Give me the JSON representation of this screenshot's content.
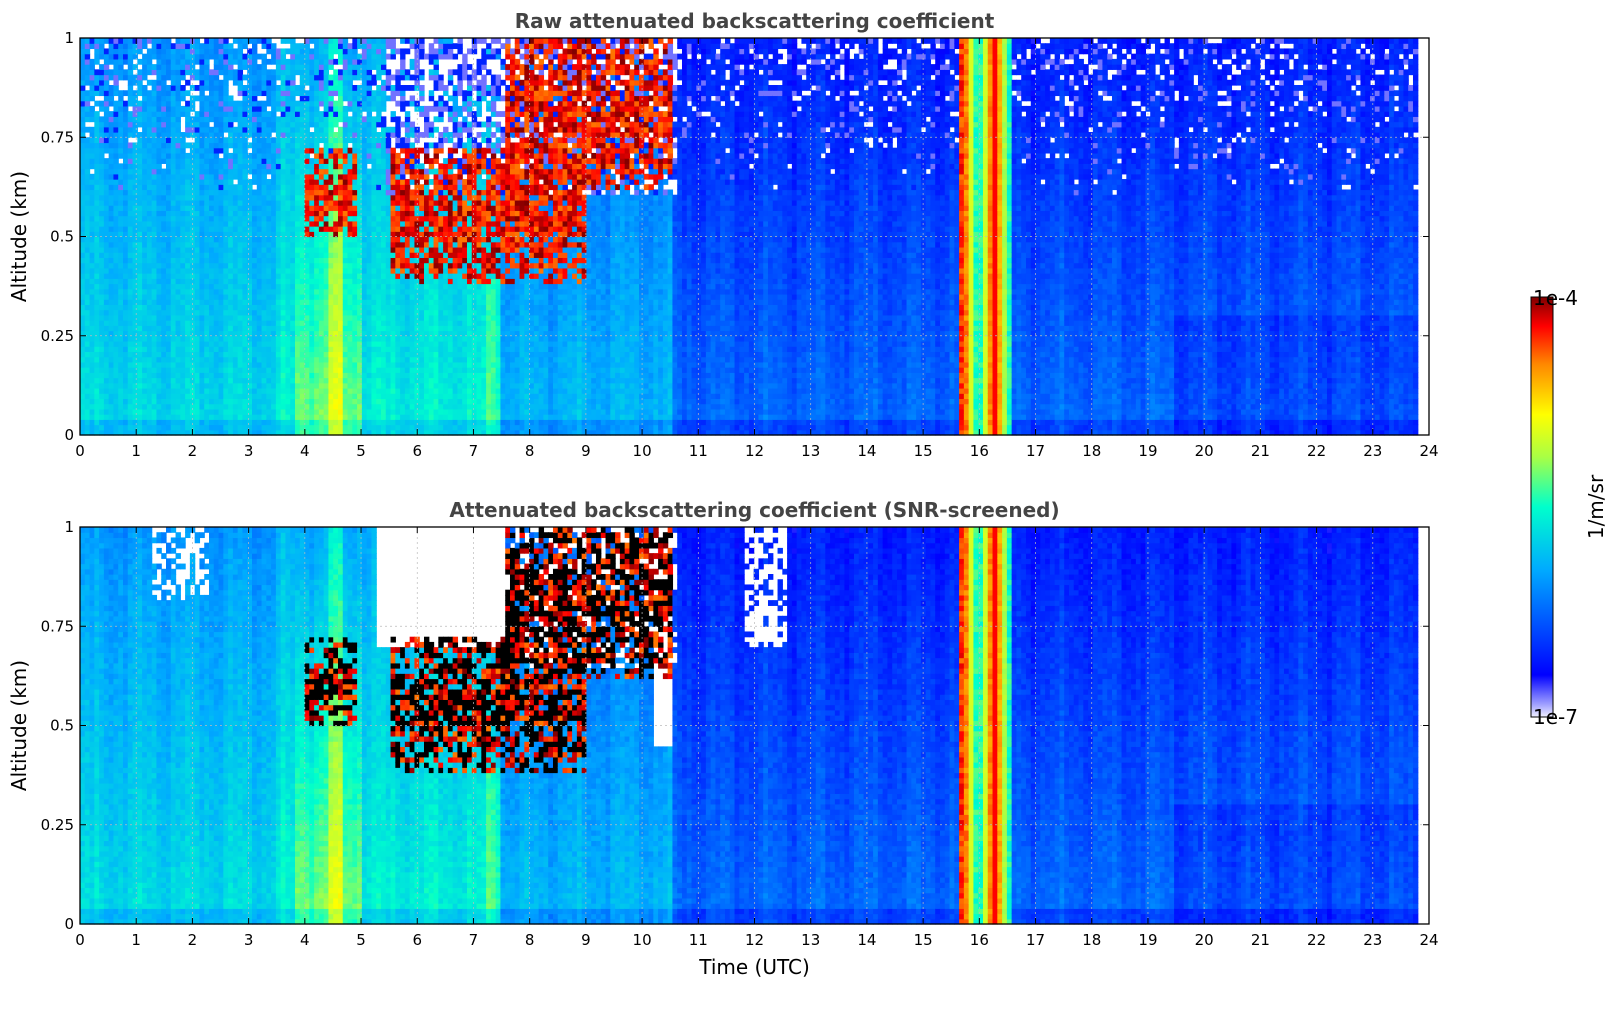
{
  "chart_data": [
    {
      "type": "heatmap",
      "title": "Raw attenuated backscattering coefficient",
      "xlabel": "",
      "ylabel": "Altitude (km)",
      "xlim": [
        0,
        24
      ],
      "ylim": [
        0,
        1
      ],
      "x_ticks": [
        "0",
        "1",
        "2",
        "3",
        "4",
        "5",
        "6",
        "7",
        "8",
        "9",
        "10",
        "11",
        "12",
        "13",
        "14",
        "15",
        "16",
        "17",
        "18",
        "19",
        "20",
        "21",
        "22",
        "23",
        "24"
      ],
      "y_ticks": [
        "0",
        "0.25",
        "0.5",
        "0.75",
        "1"
      ],
      "grid": true,
      "data_extent_hours": [
        0,
        23.8
      ],
      "colorscale": "jet",
      "scale": "log",
      "screened": false,
      "features": [
        {
          "kind": "cloud",
          "start_hour": 4.0,
          "end_hour": 4.9,
          "base_km": 0.5,
          "top_km": 0.72
        },
        {
          "kind": "cloud",
          "start_hour": 5.5,
          "end_hour": 9.0,
          "base_km": 0.38,
          "top_km": 0.72
        },
        {
          "kind": "cloud",
          "start_hour": 7.6,
          "end_hour": 10.5,
          "base_km": 0.62,
          "top_km": 1.0
        },
        {
          "kind": "rain",
          "start_hour": 15.6,
          "end_hour": 16.6,
          "base_km": 0,
          "top_km": 1.0
        }
      ]
    },
    {
      "type": "heatmap",
      "title": "Attenuated backscattering coefficient (SNR-screened)",
      "xlabel": "Time (UTC)",
      "ylabel": "Altitude (km)",
      "xlim": [
        0,
        24
      ],
      "ylim": [
        0,
        1
      ],
      "x_ticks": [
        "0",
        "1",
        "2",
        "3",
        "4",
        "5",
        "6",
        "7",
        "8",
        "9",
        "10",
        "11",
        "12",
        "13",
        "14",
        "15",
        "16",
        "17",
        "18",
        "19",
        "20",
        "21",
        "22",
        "23",
        "24"
      ],
      "y_ticks": [
        "0",
        "0.25",
        "0.5",
        "0.75",
        "1"
      ],
      "grid": true,
      "data_extent_hours": [
        0,
        23.8
      ],
      "colorscale": "jet",
      "scale": "log",
      "screened": true,
      "features": [
        {
          "kind": "cloud",
          "start_hour": 4.0,
          "end_hour": 4.9,
          "base_km": 0.5,
          "top_km": 0.72
        },
        {
          "kind": "cloud",
          "start_hour": 5.5,
          "end_hour": 9.0,
          "base_km": 0.38,
          "top_km": 0.72
        },
        {
          "kind": "cloud",
          "start_hour": 7.6,
          "end_hour": 10.5,
          "base_km": 0.62,
          "top_km": 1.0
        },
        {
          "kind": "rain",
          "start_hour": 15.6,
          "end_hour": 16.6,
          "base_km": 0,
          "top_km": 1.0
        }
      ]
    }
  ],
  "colorbar": {
    "max_label": "1e-4",
    "min_label": "1e-7",
    "unit_label": "1/m/sr",
    "colormap": "jet"
  }
}
